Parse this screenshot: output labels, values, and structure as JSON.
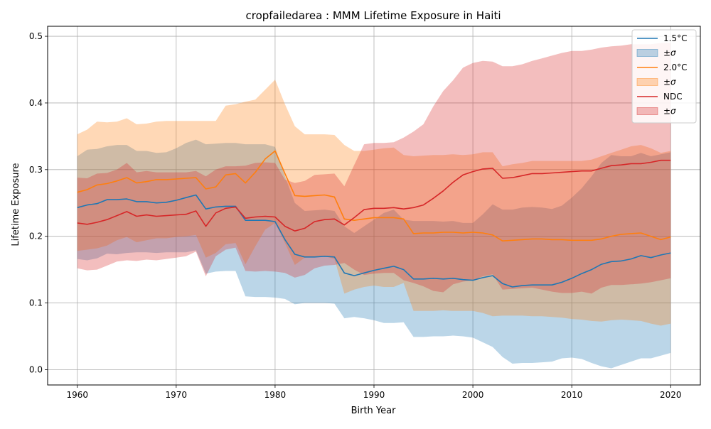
{
  "chart_data": {
    "type": "area",
    "title": "cropfailedarea : MMM Lifetime Exposure in Haiti",
    "xlabel": "Birth Year",
    "ylabel": "Lifetime Exposure",
    "xlim": [
      1957,
      2023
    ],
    "ylim": [
      -0.023,
      0.515
    ],
    "xticks": [
      1960,
      1970,
      1980,
      1990,
      2000,
      2010,
      2020
    ],
    "yticks": [
      0.0,
      0.1,
      0.2,
      0.3,
      0.4,
      0.5
    ],
    "xtick_labels": [
      "1960",
      "1970",
      "1980",
      "1990",
      "2000",
      "2010",
      "2020"
    ],
    "ytick_labels": [
      "0.0",
      "0.1",
      "0.2",
      "0.3",
      "0.4",
      "0.5"
    ],
    "grid": true,
    "legend_position": "top-right",
    "years": [
      1960,
      1961,
      1962,
      1963,
      1964,
      1965,
      1966,
      1967,
      1968,
      1969,
      1970,
      1971,
      1972,
      1973,
      1974,
      1975,
      1976,
      1977,
      1978,
      1979,
      1980,
      1981,
      1982,
      1983,
      1984,
      1985,
      1986,
      1987,
      1988,
      1989,
      1990,
      1991,
      1992,
      1993,
      1994,
      1995,
      1996,
      1997,
      1998,
      1999,
      2000,
      2001,
      2002,
      2003,
      2004,
      2005,
      2006,
      2007,
      2008,
      2009,
      2010,
      2011,
      2012,
      2013,
      2014,
      2015,
      2016,
      2017,
      2018,
      2019,
      2020
    ],
    "series": [
      {
        "name": "1.5°C",
        "band_label": "±σ",
        "color": "#1f77b4",
        "mean": [
          0.243,
          0.247,
          0.249,
          0.255,
          0.255,
          0.256,
          0.252,
          0.252,
          0.25,
          0.251,
          0.254,
          0.258,
          0.262,
          0.241,
          0.244,
          0.245,
          0.245,
          0.224,
          0.224,
          0.224,
          0.222,
          0.195,
          0.173,
          0.169,
          0.169,
          0.17,
          0.169,
          0.145,
          0.141,
          0.145,
          0.149,
          0.152,
          0.155,
          0.15,
          0.136,
          0.136,
          0.137,
          0.136,
          0.137,
          0.135,
          0.134,
          0.138,
          0.141,
          0.129,
          0.124,
          0.126,
          0.127,
          0.127,
          0.127,
          0.131,
          0.137,
          0.144,
          0.15,
          0.158,
          0.162,
          0.163,
          0.166,
          0.171,
          0.168,
          0.172,
          0.175
        ],
        "upper": [
          0.32,
          0.33,
          0.331,
          0.335,
          0.337,
          0.337,
          0.328,
          0.328,
          0.325,
          0.326,
          0.332,
          0.34,
          0.345,
          0.338,
          0.339,
          0.34,
          0.34,
          0.338,
          0.338,
          0.338,
          0.334,
          0.29,
          0.25,
          0.238,
          0.239,
          0.24,
          0.238,
          0.215,
          0.205,
          0.215,
          0.225,
          0.235,
          0.24,
          0.225,
          0.223,
          0.223,
          0.223,
          0.222,
          0.223,
          0.22,
          0.22,
          0.233,
          0.248,
          0.24,
          0.24,
          0.243,
          0.244,
          0.243,
          0.241,
          0.246,
          0.258,
          0.272,
          0.29,
          0.31,
          0.322,
          0.32,
          0.32,
          0.325,
          0.32,
          0.323,
          0.326
        ],
        "lower": [
          0.166,
          0.164,
          0.167,
          0.174,
          0.173,
          0.175,
          0.176,
          0.176,
          0.175,
          0.176,
          0.176,
          0.176,
          0.179,
          0.144,
          0.147,
          0.148,
          0.148,
          0.11,
          0.109,
          0.109,
          0.108,
          0.106,
          0.098,
          0.1,
          0.1,
          0.1,
          0.099,
          0.077,
          0.079,
          0.077,
          0.074,
          0.07,
          0.07,
          0.071,
          0.049,
          0.049,
          0.05,
          0.05,
          0.051,
          0.05,
          0.048,
          0.041,
          0.034,
          0.019,
          0.009,
          0.01,
          0.01,
          0.011,
          0.012,
          0.017,
          0.018,
          0.016,
          0.01,
          0.005,
          0.002,
          0.007,
          0.012,
          0.017,
          0.017,
          0.021,
          0.025
        ]
      },
      {
        "name": "2.0°C",
        "band_label": "±σ",
        "color": "#ff7f0e",
        "mean": [
          0.266,
          0.27,
          0.277,
          0.279,
          0.283,
          0.288,
          0.28,
          0.282,
          0.285,
          0.285,
          0.286,
          0.287,
          0.288,
          0.271,
          0.274,
          0.292,
          0.294,
          0.28,
          0.296,
          0.316,
          0.328,
          0.294,
          0.261,
          0.26,
          0.261,
          0.262,
          0.259,
          0.226,
          0.224,
          0.226,
          0.228,
          0.228,
          0.228,
          0.226,
          0.204,
          0.205,
          0.205,
          0.206,
          0.206,
          0.205,
          0.206,
          0.205,
          0.202,
          0.193,
          0.194,
          0.195,
          0.196,
          0.196,
          0.195,
          0.195,
          0.194,
          0.194,
          0.194,
          0.196,
          0.2,
          0.203,
          0.204,
          0.205,
          0.2,
          0.195,
          0.199
        ],
        "upper": [
          0.353,
          0.36,
          0.372,
          0.371,
          0.372,
          0.377,
          0.368,
          0.369,
          0.372,
          0.373,
          0.373,
          0.373,
          0.373,
          0.373,
          0.373,
          0.396,
          0.398,
          0.402,
          0.405,
          0.42,
          0.435,
          0.398,
          0.365,
          0.353,
          0.353,
          0.353,
          0.352,
          0.337,
          0.328,
          0.328,
          0.33,
          0.332,
          0.333,
          0.322,
          0.32,
          0.321,
          0.322,
          0.322,
          0.323,
          0.322,
          0.323,
          0.326,
          0.326,
          0.305,
          0.308,
          0.31,
          0.313,
          0.313,
          0.313,
          0.313,
          0.313,
          0.313,
          0.315,
          0.32,
          0.325,
          0.33,
          0.335,
          0.337,
          0.332,
          0.325,
          0.328
        ],
        "lower": [
          0.178,
          0.18,
          0.182,
          0.186,
          0.194,
          0.199,
          0.191,
          0.194,
          0.197,
          0.197,
          0.199,
          0.2,
          0.202,
          0.168,
          0.175,
          0.188,
          0.19,
          0.158,
          0.185,
          0.21,
          0.22,
          0.19,
          0.157,
          0.168,
          0.169,
          0.17,
          0.166,
          0.114,
          0.12,
          0.124,
          0.126,
          0.124,
          0.124,
          0.13,
          0.088,
          0.088,
          0.088,
          0.089,
          0.088,
          0.088,
          0.088,
          0.085,
          0.08,
          0.081,
          0.081,
          0.081,
          0.08,
          0.08,
          0.079,
          0.078,
          0.076,
          0.075,
          0.073,
          0.072,
          0.074,
          0.075,
          0.074,
          0.073,
          0.069,
          0.066,
          0.069
        ]
      },
      {
        "name": "NDC",
        "band_label": "±σ",
        "color": "#d62728",
        "mean": [
          0.22,
          0.218,
          0.221,
          0.225,
          0.231,
          0.237,
          0.23,
          0.232,
          0.23,
          0.231,
          0.232,
          0.233,
          0.238,
          0.215,
          0.235,
          0.242,
          0.244,
          0.227,
          0.229,
          0.23,
          0.229,
          0.215,
          0.208,
          0.212,
          0.222,
          0.225,
          0.226,
          0.217,
          0.228,
          0.24,
          0.242,
          0.242,
          0.243,
          0.241,
          0.243,
          0.247,
          0.257,
          0.268,
          0.281,
          0.292,
          0.297,
          0.301,
          0.302,
          0.287,
          0.288,
          0.291,
          0.294,
          0.294,
          0.295,
          0.296,
          0.297,
          0.298,
          0.298,
          0.302,
          0.306,
          0.307,
          0.309,
          0.309,
          0.311,
          0.314,
          0.314
        ],
        "upper": [
          0.288,
          0.287,
          0.294,
          0.295,
          0.3,
          0.31,
          0.296,
          0.298,
          0.296,
          0.296,
          0.296,
          0.296,
          0.298,
          0.29,
          0.3,
          0.305,
          0.305,
          0.306,
          0.31,
          0.311,
          0.31,
          0.285,
          0.28,
          0.283,
          0.292,
          0.293,
          0.294,
          0.275,
          0.307,
          0.338,
          0.34,
          0.34,
          0.341,
          0.348,
          0.357,
          0.368,
          0.395,
          0.418,
          0.434,
          0.453,
          0.46,
          0.463,
          0.462,
          0.455,
          0.455,
          0.458,
          0.463,
          0.467,
          0.471,
          0.475,
          0.478,
          0.478,
          0.48,
          0.483,
          0.485,
          0.486,
          0.488,
          0.488,
          0.488,
          0.49,
          0.49
        ],
        "lower": [
          0.152,
          0.149,
          0.15,
          0.156,
          0.162,
          0.164,
          0.163,
          0.165,
          0.164,
          0.166,
          0.168,
          0.17,
          0.177,
          0.14,
          0.17,
          0.18,
          0.183,
          0.148,
          0.147,
          0.148,
          0.147,
          0.145,
          0.138,
          0.142,
          0.152,
          0.156,
          0.157,
          0.16,
          0.15,
          0.142,
          0.144,
          0.145,
          0.145,
          0.134,
          0.13,
          0.125,
          0.118,
          0.116,
          0.128,
          0.132,
          0.134,
          0.14,
          0.143,
          0.12,
          0.121,
          0.122,
          0.123,
          0.12,
          0.117,
          0.115,
          0.115,
          0.117,
          0.114,
          0.123,
          0.127,
          0.127,
          0.128,
          0.129,
          0.131,
          0.134,
          0.137
        ]
      }
    ]
  }
}
